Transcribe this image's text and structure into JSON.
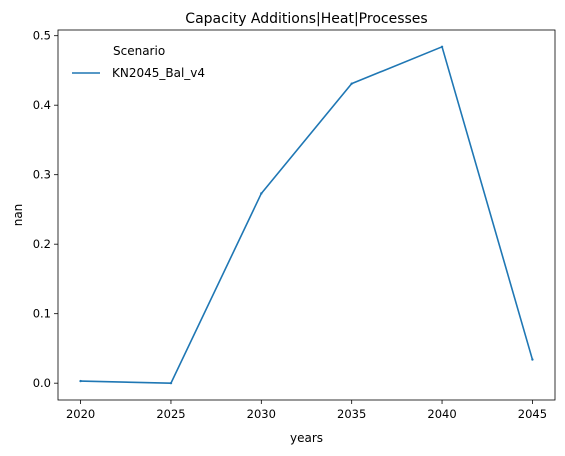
{
  "chart_data": {
    "type": "line",
    "title": "Capacity Additions|Heat|Processes",
    "xlabel": "years",
    "ylabel": "nan",
    "x": [
      2020,
      2025,
      2030,
      2035,
      2040,
      2045
    ],
    "xticks": [
      "2020",
      "2025",
      "2030",
      "2035",
      "2040",
      "2045"
    ],
    "yticks": [
      "0.0",
      "0.1",
      "0.2",
      "0.3",
      "0.4",
      "0.5"
    ],
    "ylim": [
      -0.0242,
      0.5082
    ],
    "xlim": [
      2018.75,
      2046.25
    ],
    "grid": false,
    "legend": {
      "title": "Scenario",
      "placement": "top-left"
    },
    "series": [
      {
        "name": "KN2045_Bal_v4",
        "color": "#1f77b4",
        "values": [
          0.003,
          0.0,
          0.273,
          0.431,
          0.484,
          0.034
        ]
      }
    ]
  }
}
